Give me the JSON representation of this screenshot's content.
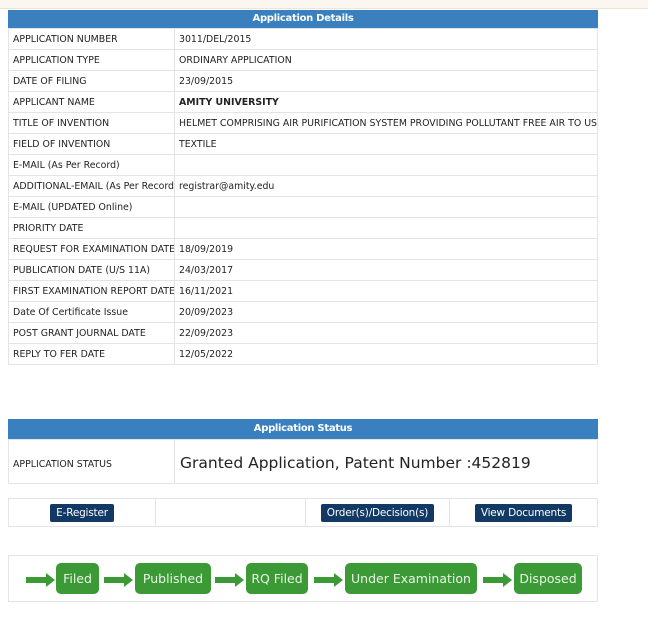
{
  "details": {
    "header": "Application Details",
    "rows": [
      {
        "label": "APPLICATION NUMBER",
        "value": "3011/DEL/2015"
      },
      {
        "label": "APPLICATION TYPE",
        "value": "ORDINARY APPLICATION"
      },
      {
        "label": "DATE OF FILING",
        "value": "23/09/2015"
      },
      {
        "label": "APPLICANT NAME",
        "value": "AMITY UNIVERSITY"
      },
      {
        "label": "TITLE OF INVENTION",
        "value": "HELMET COMPRISING AIR PURIFICATION SYSTEM PROVIDING POLLUTANT FREE AIR TO USERS"
      },
      {
        "label": "FIELD OF INVENTION",
        "value": "TEXTILE"
      },
      {
        "label": "E-MAIL (As Per Record)",
        "value": ""
      },
      {
        "label": "ADDITIONAL-EMAIL (As Per Record)",
        "value": "registrar@amity.edu"
      },
      {
        "label": "E-MAIL (UPDATED Online)",
        "value": ""
      },
      {
        "label": "PRIORITY DATE",
        "value": ""
      },
      {
        "label": "REQUEST FOR EXAMINATION DATE",
        "value": "18/09/2019"
      },
      {
        "label": "PUBLICATION DATE (U/S 11A)",
        "value": "24/03/2017"
      },
      {
        "label": "FIRST EXAMINATION REPORT DATE",
        "value": "16/11/2021"
      },
      {
        "label": "Date Of Certificate Issue",
        "value": "20/09/2023"
      },
      {
        "label": "POST GRANT JOURNAL DATE",
        "value": "22/09/2023"
      },
      {
        "label": "REPLY TO FER DATE",
        "value": "12/05/2022"
      }
    ]
  },
  "status": {
    "header": "Application Status",
    "label": "APPLICATION STATUS",
    "value": "Granted Application, Patent Number :452819"
  },
  "actions": {
    "eregister": "E-Register",
    "orders": "Order(s)/Decision(s)",
    "view_documents": "View Documents"
  },
  "progress": {
    "color": "#3b9a36",
    "steps": [
      "Filed",
      "Published",
      "RQ Filed",
      "Under Examination",
      "Disposed"
    ]
  }
}
